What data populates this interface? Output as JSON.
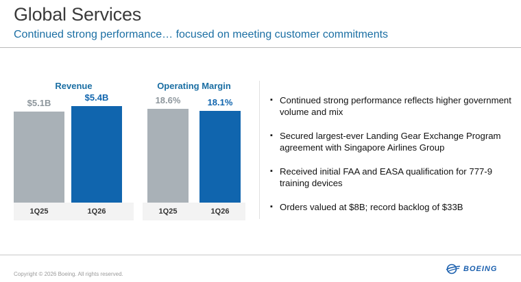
{
  "header": {
    "title": "Global Services",
    "subtitle": "Continued strong performance… focused on meeting customer commitments"
  },
  "chart_data": [
    {
      "type": "bar",
      "title": "Revenue",
      "categories": [
        "1Q25",
        "1Q26"
      ],
      "values": [
        5.1,
        5.4
      ],
      "data_labels": [
        "$5.1B",
        "$5.4B"
      ],
      "unit": "$B",
      "colors": [
        "#a9b1b7",
        "#1065ae"
      ],
      "ylim": [
        0,
        6.5
      ]
    },
    {
      "type": "bar",
      "title": "Operating Margin",
      "categories": [
        "1Q25",
        "1Q26"
      ],
      "values": [
        18.6,
        18.1
      ],
      "data_labels": [
        "18.6%",
        "18.1%"
      ],
      "unit": "%",
      "colors": [
        "#a9b1b7",
        "#1065ae"
      ],
      "ylim": [
        0,
        23
      ]
    }
  ],
  "bullets": [
    "Continued strong performance reflects higher government volume and mix",
    "Secured largest-ever Landing Gear Exchange Program agreement with Singapore Airlines Group",
    "Received initial FAA and EASA qualification for 777-9 training devices",
    "Orders valued at $8B; record backlog of $33B"
  ],
  "footer": {
    "copyright": "Copyright © 2026 Boeing. All rights reserved.",
    "logo_text": "BOEING",
    "logo_icon": "boeing-logo-icon",
    "bullet_mark": "▪"
  }
}
